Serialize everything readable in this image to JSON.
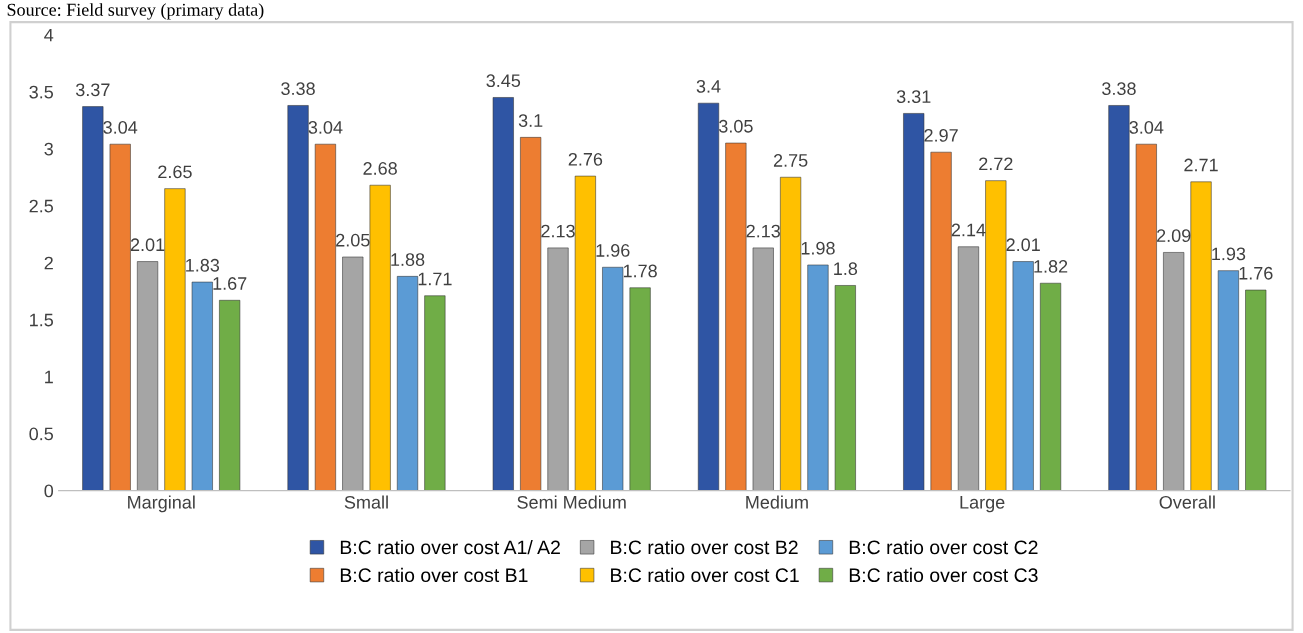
{
  "chart_data": {
    "type": "bar",
    "categories": [
      "Marginal",
      "Small",
      "Semi Medium",
      "Medium",
      "Large",
      "Overall"
    ],
    "series": [
      {
        "name": "B:C ratio over cost A1/ A2",
        "color": "#2f55a4",
        "values": [
          3.37,
          3.38,
          3.45,
          3.4,
          3.31,
          3.38
        ]
      },
      {
        "name": "B:C ratio over cost B1",
        "color": "#ed7d31",
        "values": [
          3.04,
          3.04,
          3.1,
          3.05,
          2.97,
          3.04
        ]
      },
      {
        "name": "B:C ratio over cost B2",
        "color": "#a5a5a5",
        "values": [
          2.01,
          2.05,
          2.13,
          2.13,
          2.14,
          2.09
        ]
      },
      {
        "name": "B:C ratio over cost C1",
        "color": "#ffc000",
        "values": [
          2.65,
          2.68,
          2.76,
          2.75,
          2.72,
          2.71
        ]
      },
      {
        "name": "B:C ratio over cost C2",
        "color": "#5b9bd5",
        "values": [
          1.83,
          1.88,
          1.96,
          1.98,
          2.01,
          1.93
        ]
      },
      {
        "name": "B:C ratio over cost C3",
        "color": "#70ad47",
        "values": [
          1.67,
          1.71,
          1.78,
          1.8,
          1.82,
          1.76
        ]
      }
    ],
    "ylim": [
      0,
      4
    ],
    "yticks": [
      0,
      0.5,
      1,
      1.5,
      2,
      2.5,
      3,
      3.5,
      4
    ],
    "data_labels": true,
    "grid": false,
    "legend": "bottom",
    "annotations": [
      "Source: Field survey (primary data)"
    ]
  }
}
